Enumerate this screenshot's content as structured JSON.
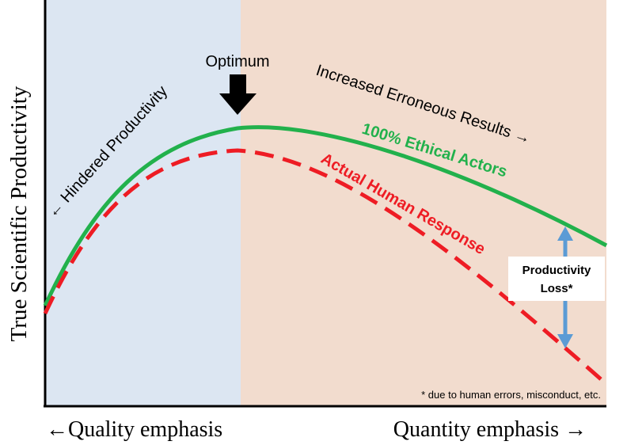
{
  "chart_data": {
    "type": "line",
    "title": "",
    "ylabel": "True Scientific Productivity",
    "xlabel_left": "←Quality emphasis",
    "xlabel_right": "Quantity emphasis →",
    "regions": [
      {
        "name": "quality-region",
        "color": "#dce6f2"
      },
      {
        "name": "quantity-region",
        "color": "#f2dcce"
      }
    ],
    "series": [
      {
        "name": "100% Ethical Actors",
        "style": "solid",
        "color": "#22b14c"
      },
      {
        "name": "Actual Human Response",
        "style": "dashed",
        "color": "#ee1c24"
      }
    ],
    "annotations": {
      "optimum": "Optimum",
      "hindered": "← Hindered Productivity",
      "erroneous": "Increased Erroneous Results →",
      "loss_line1": "Productivity",
      "loss_line2": "Loss*",
      "footnote": "* due to human errors, misconduct, etc."
    },
    "colors": {
      "ethical": "#22b14c",
      "human": "#ee1c24",
      "arrow": "#5b9bd5",
      "axis": "#000000"
    }
  }
}
